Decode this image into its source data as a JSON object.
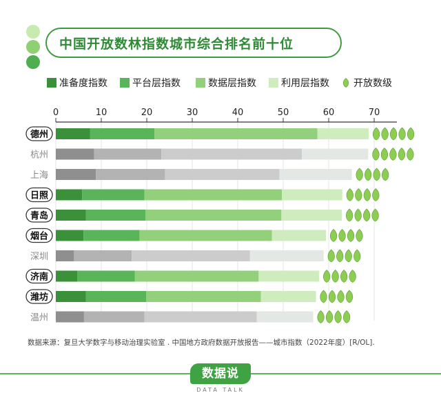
{
  "title": "中国开放数林指数城市综合排名前十位",
  "footer": {
    "source": "数据来源：复旦大学数字与移动治理实验室 . 中国地方政府数据开放报告——城市指数（2022年度）[R/OL].",
    "logo_text": "数据说",
    "logo_sub": "DATA TALK"
  },
  "colors": {
    "accent": "#2f8a35",
    "series_green": [
      "#3a913a",
      "#5ab55a",
      "#93d07c",
      "#cfecbe"
    ],
    "series_gray": [
      "#8f8f8f",
      "#b3b3b3",
      "#cccccc",
      "#e4e8e4"
    ],
    "leaf": "#8ccd52",
    "dots": [
      "#c6eab0",
      "#8fd072",
      "#4fae4f"
    ]
  },
  "chart_data": {
    "type": "bar",
    "orientation": "horizontal",
    "stacked": true,
    "xlim": [
      0,
      75
    ],
    "xticks": [
      0,
      10,
      20,
      30,
      40,
      50,
      60,
      70
    ],
    "legend": [
      "准备度指数",
      "平台层指数",
      "数据层指数",
      "利用层指数",
      "开放数级"
    ],
    "legend_position": "top",
    "grid": "vertical",
    "categories": [
      "德州",
      "杭州",
      "上海",
      "日照",
      "青岛",
      "烟台",
      "深圳",
      "济南",
      "潍坊",
      "温州"
    ],
    "highlighted": [
      true,
      false,
      false,
      true,
      true,
      true,
      false,
      true,
      true,
      false
    ],
    "series": [
      {
        "name": "准备度指数",
        "values": [
          7.5,
          8.4,
          8.8,
          5.8,
          6.6,
          6.1,
          4.0,
          4.7,
          6.6,
          6.2
        ]
      },
      {
        "name": "平台层指数",
        "values": [
          14.2,
          14.8,
          15.2,
          13.7,
          13.1,
          12.3,
          12.7,
          12.7,
          13.3,
          13.3
        ]
      },
      {
        "name": "数据层指数",
        "values": [
          35.8,
          30.9,
          25.2,
          30.2,
          29.9,
          29.1,
          26.0,
          27.2,
          25.2,
          24.7
        ]
      },
      {
        "name": "利用层指数",
        "values": [
          11.3,
          14.6,
          15.9,
          13.3,
          13.3,
          11.9,
          16.2,
          13.3,
          12.1,
          12.4
        ]
      }
    ],
    "open_level": [
      5,
      5,
      4,
      4,
      4,
      4,
      4,
      4,
      4,
      4
    ]
  }
}
